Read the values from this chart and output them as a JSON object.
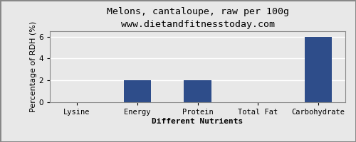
{
  "title": "Melons, cantaloupe, raw per 100g",
  "subtitle": "www.dietandfitnesstoday.com",
  "xlabel": "Different Nutrients",
  "ylabel": "Percentage of RDH (%)",
  "categories": [
    "Lysine",
    "Energy",
    "Protein",
    "Total Fat",
    "Carbohydrate"
  ],
  "values": [
    0,
    2,
    2,
    0,
    6
  ],
  "bar_color": "#2e4d8a",
  "ylim": [
    0,
    6.5
  ],
  "yticks": [
    0,
    2,
    4,
    6
  ],
  "background_color": "#e8e8e8",
  "plot_bg_color": "#e8e8e8",
  "grid_color": "#ffffff",
  "border_color": "#888888",
  "title_fontsize": 9.5,
  "subtitle_fontsize": 8.5,
  "label_fontsize": 8,
  "tick_fontsize": 7.5,
  "xlabel_fontsize": 8,
  "xlabel_bold": true
}
